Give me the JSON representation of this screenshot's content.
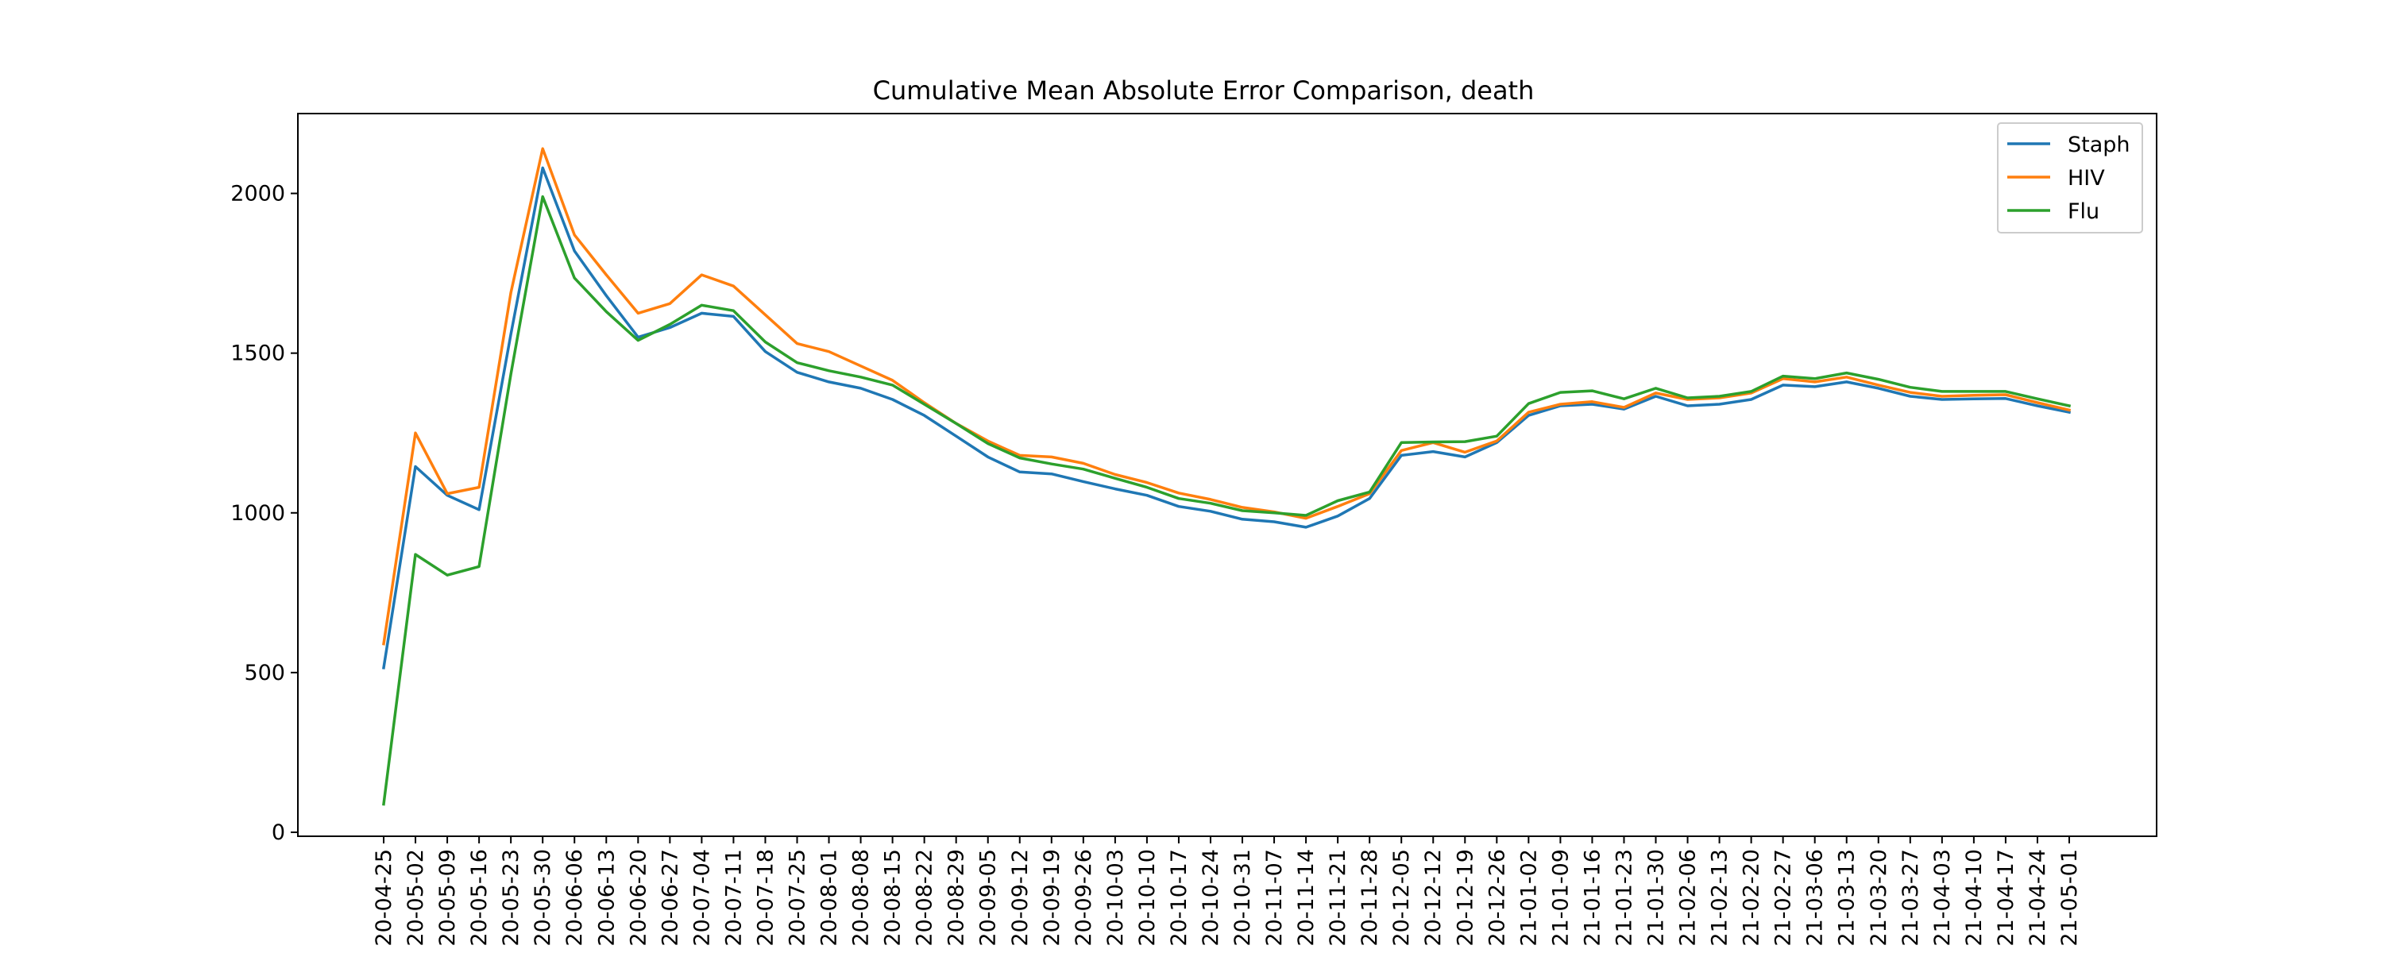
{
  "chart_data": {
    "type": "line",
    "title": "Cumulative Mean Absolute Error Comparison, death",
    "xlabel": "",
    "ylabel": "",
    "ylim": [
      0,
      2250
    ],
    "yticks": [
      0,
      500,
      1000,
      1500,
      2000
    ],
    "grid": false,
    "legend": "upper-right",
    "x": [
      "20-04-25",
      "20-05-02",
      "20-05-09",
      "20-05-16",
      "20-05-23",
      "20-05-30",
      "20-06-06",
      "20-06-13",
      "20-06-20",
      "20-06-27",
      "20-07-04",
      "20-07-11",
      "20-07-18",
      "20-07-25",
      "20-08-01",
      "20-08-08",
      "20-08-15",
      "20-08-22",
      "20-08-29",
      "20-09-05",
      "20-09-12",
      "20-09-19",
      "20-09-26",
      "20-10-03",
      "20-10-10",
      "20-10-17",
      "20-10-24",
      "20-10-31",
      "20-11-07",
      "20-11-14",
      "20-11-21",
      "20-11-28",
      "20-12-05",
      "20-12-12",
      "20-12-19",
      "20-12-26",
      "21-01-02",
      "21-01-09",
      "21-01-16",
      "21-01-23",
      "21-01-30",
      "21-02-06",
      "21-02-13",
      "21-02-20",
      "21-02-27",
      "21-03-06",
      "21-03-13",
      "21-03-20",
      "21-03-27",
      "21-04-03",
      "21-04-10",
      "21-04-17",
      "21-04-24",
      "21-05-01"
    ],
    "series": [
      {
        "name": "Staph",
        "color": "#1f77b4",
        "values": [
          515,
          1145,
          1055,
          1010,
          1560,
          2080,
          1820,
          1680,
          1550,
          1580,
          1625,
          1615,
          1505,
          1440,
          1410,
          1390,
          1355,
          1305,
          1240,
          1175,
          1128,
          1122,
          1098,
          1075,
          1055,
          1020,
          1005,
          980,
          972,
          955,
          990,
          1045,
          1180,
          1192,
          1175,
          1220,
          1305,
          1335,
          1340,
          1325,
          1365,
          1335,
          1340,
          1355,
          1400,
          1395,
          1410,
          1390,
          1365,
          1355,
          1357,
          1358,
          1335,
          1315
        ]
      },
      {
        "name": "HIV",
        "color": "#ff7f0e",
        "values": [
          590,
          1250,
          1060,
          1080,
          1690,
          2140,
          1870,
          1745,
          1625,
          1655,
          1745,
          1710,
          1620,
          1530,
          1505,
          1460,
          1415,
          1345,
          1280,
          1225,
          1180,
          1175,
          1155,
          1120,
          1095,
          1062,
          1042,
          1017,
          1003,
          983,
          1020,
          1060,
          1195,
          1220,
          1190,
          1225,
          1315,
          1340,
          1348,
          1330,
          1375,
          1355,
          1360,
          1375,
          1420,
          1410,
          1425,
          1400,
          1377,
          1365,
          1368,
          1370,
          1345,
          1322
        ]
      },
      {
        "name": "Flu",
        "color": "#2ca02c",
        "values": [
          88,
          870,
          805,
          832,
          1435,
          1990,
          1735,
          1630,
          1540,
          1590,
          1650,
          1633,
          1535,
          1470,
          1445,
          1425,
          1400,
          1340,
          1280,
          1217,
          1172,
          1153,
          1137,
          1108,
          1080,
          1045,
          1030,
          1007,
          1000,
          992,
          1038,
          1065,
          1220,
          1222,
          1223,
          1240,
          1342,
          1377,
          1382,
          1357,
          1390,
          1360,
          1365,
          1380,
          1428,
          1420,
          1438,
          1418,
          1393,
          1380,
          1380,
          1380,
          1357,
          1335
        ]
      }
    ]
  }
}
